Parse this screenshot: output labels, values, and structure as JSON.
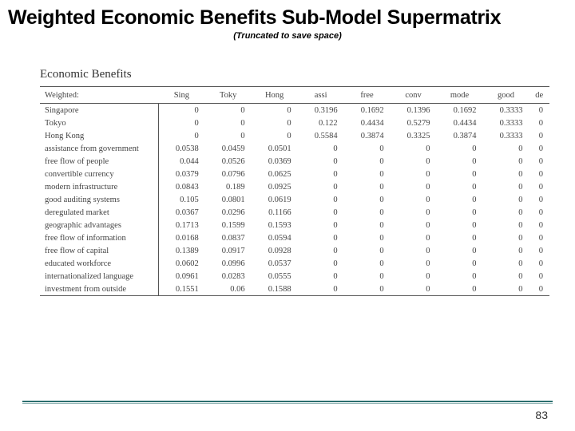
{
  "title": "Weighted Economic Benefits Sub-Model Supermatrix",
  "subtitle": "(Truncated to save space)",
  "section_label": "Economic Benefits",
  "page_number": "83",
  "colors": {
    "background": "#ffffff",
    "text": "#000000",
    "table_text": "#444444",
    "border": "#555555",
    "rule_top": "#2a6e6e",
    "rule_bottom": "#94b8b8"
  },
  "table": {
    "header_label": "Weighted:",
    "columns": [
      "Sing",
      "Toky",
      "Hong",
      "assi",
      "free",
      "conv",
      "mode",
      "good",
      "de"
    ],
    "rows": [
      {
        "label": "Singapore",
        "cells": [
          "0",
          "0",
          "0",
          "0.3196",
          "0.1692",
          "0.1396",
          "0.1692",
          "0.3333",
          "0"
        ]
      },
      {
        "label": "Tokyo",
        "cells": [
          "0",
          "0",
          "0",
          "0.122",
          "0.4434",
          "0.5279",
          "0.4434",
          "0.3333",
          "0"
        ]
      },
      {
        "label": "Hong Kong",
        "cells": [
          "0",
          "0",
          "0",
          "0.5584",
          "0.3874",
          "0.3325",
          "0.3874",
          "0.3333",
          "0"
        ]
      },
      {
        "label": "assistance from government",
        "cells": [
          "0.0538",
          "0.0459",
          "0.0501",
          "0",
          "0",
          "0",
          "0",
          "0",
          "0"
        ]
      },
      {
        "label": "free flow of people",
        "cells": [
          "0.044",
          "0.0526",
          "0.0369",
          "0",
          "0",
          "0",
          "0",
          "0",
          "0"
        ]
      },
      {
        "label": "convertible currency",
        "cells": [
          "0.0379",
          "0.0796",
          "0.0625",
          "0",
          "0",
          "0",
          "0",
          "0",
          "0"
        ]
      },
      {
        "label": "modern infrastructure",
        "cells": [
          "0.0843",
          "0.189",
          "0.0925",
          "0",
          "0",
          "0",
          "0",
          "0",
          "0"
        ]
      },
      {
        "label": "good auditing systems",
        "cells": [
          "0.105",
          "0.0801",
          "0.0619",
          "0",
          "0",
          "0",
          "0",
          "0",
          "0"
        ]
      },
      {
        "label": "deregulated market",
        "cells": [
          "0.0367",
          "0.0296",
          "0.1166",
          "0",
          "0",
          "0",
          "0",
          "0",
          "0"
        ]
      },
      {
        "label": "geographic advantages",
        "cells": [
          "0.1713",
          "0.1599",
          "0.1593",
          "0",
          "0",
          "0",
          "0",
          "0",
          "0"
        ]
      },
      {
        "label": "free flow of information",
        "cells": [
          "0.0168",
          "0.0837",
          "0.0594",
          "0",
          "0",
          "0",
          "0",
          "0",
          "0"
        ]
      },
      {
        "label": "free flow of capital",
        "cells": [
          "0.1389",
          "0.0917",
          "0.0928",
          "0",
          "0",
          "0",
          "0",
          "0",
          "0"
        ]
      },
      {
        "label": "educated workforce",
        "cells": [
          "0.0602",
          "0.0996",
          "0.0537",
          "0",
          "0",
          "0",
          "0",
          "0",
          "0"
        ]
      },
      {
        "label": "internationalized language",
        "cells": [
          "0.0961",
          "0.0283",
          "0.0555",
          "0",
          "0",
          "0",
          "0",
          "0",
          "0"
        ]
      },
      {
        "label": "investment from outside",
        "cells": [
          "0.1551",
          "0.06",
          "0.1588",
          "0",
          "0",
          "0",
          "0",
          "0",
          "0"
        ]
      }
    ]
  }
}
